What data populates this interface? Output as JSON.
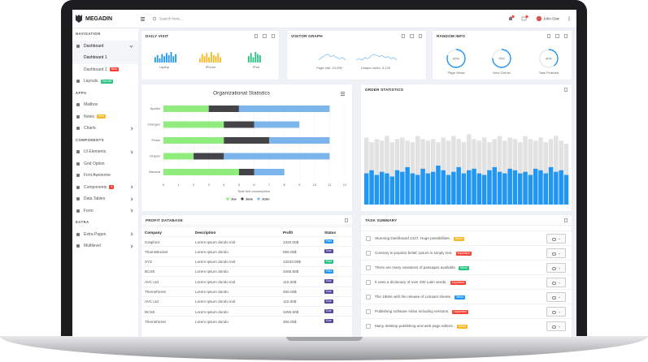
{
  "header": {
    "brand": "MEGADIN",
    "search_placeholder": "Search here...",
    "user": "John Doe"
  },
  "sidebar": {
    "sections": [
      {
        "title": "NAVIGATION",
        "items": [
          {
            "label": "Dashboard",
            "active": true,
            "has_submenu": true,
            "children": [
              {
                "label": "Dashboard 1",
                "active": true
              },
              {
                "label": "Dashboard 2",
                "badge": "New",
                "badge_color": "#f44336"
              }
            ]
          },
          {
            "label": "Layouts",
            "badge": "Special",
            "badge_color": "#26c281"
          }
        ]
      },
      {
        "title": "APPS",
        "items": [
          {
            "label": "Mailbox"
          },
          {
            "label": "Notes",
            "badge": "New",
            "badge_color": "#f7b924"
          },
          {
            "label": "Charts",
            "has_submenu": true
          }
        ]
      },
      {
        "title": "COMPONENTS",
        "items": [
          {
            "label": "UI Elements",
            "has_submenu": true
          },
          {
            "label": "Grid Option"
          },
          {
            "label": "Font Awesome"
          },
          {
            "label": "Components",
            "badge": "4",
            "badge_color": "#f44336",
            "has_submenu": true
          },
          {
            "label": "Data Tables",
            "has_submenu": true
          },
          {
            "label": "Form",
            "has_submenu": true
          }
        ]
      },
      {
        "title": "EXTRA",
        "items": [
          {
            "label": "Extra Pages",
            "has_submenu": true
          },
          {
            "label": "Multilevel",
            "has_submenu": true
          }
        ]
      }
    ]
  },
  "daily_visit": {
    "title": "DAILY VISIT",
    "ylim": [
      0,
      10
    ],
    "items": [
      {
        "label": "Laptop",
        "color": "#2196f3",
        "values": [
          5,
          7,
          4,
          8,
          6,
          9,
          7,
          10,
          6,
          8
        ]
      },
      {
        "label": "iPhone",
        "color": "#f7b924",
        "values": [
          4,
          8,
          6,
          9,
          5,
          10,
          7,
          6,
          9,
          5
        ]
      },
      {
        "label": "iPad",
        "color": "#26c281",
        "values": [
          6,
          9,
          5,
          10,
          8,
          7
        ]
      }
    ]
  },
  "visitor_graph": {
    "title": "VISITOR GRAPH",
    "ylim": [
      0,
      10
    ],
    "color": "#7cc4ec",
    "items": [
      {
        "label": "Page visit",
        "count": "10,090",
        "values": [
          3,
          5,
          7,
          8,
          6,
          7,
          5,
          4,
          5,
          3
        ]
      },
      {
        "label": "Unique visitor",
        "count": "8,129",
        "values": [
          3,
          4,
          3,
          5,
          4,
          6,
          8,
          7,
          6,
          7,
          5,
          6,
          4,
          5,
          3
        ]
      }
    ]
  },
  "random_info": {
    "title": "RANDOM INFO",
    "color": "#2196f3",
    "items": [
      {
        "value": 80,
        "label": "80%",
        "name": "Page Views"
      },
      {
        "value": 75,
        "label": "75%",
        "name": "New Clients"
      },
      {
        "value": 40,
        "label": "40%",
        "name": "Task Finished"
      }
    ]
  },
  "org_chart": {
    "type": "bar",
    "orientation": "horizontal",
    "stacked": true,
    "title": "Organizational Statistics",
    "x_label": "Total fruit consumption",
    "categories": [
      "Apples",
      "Oranges",
      "Pears",
      "Grapes",
      "Banana"
    ],
    "series": [
      {
        "name": "Joe",
        "color": "#90ed7d",
        "values": [
          3,
          4,
          4,
          2,
          5
        ]
      },
      {
        "name": "Jane",
        "color": "#434348",
        "values": [
          2,
          2,
          3,
          2,
          1
        ]
      },
      {
        "name": "John",
        "color": "#7cb5ec",
        "values": [
          6,
          3,
          4,
          7,
          2
        ]
      }
    ],
    "xlim": [
      0,
      12
    ],
    "xticks": [
      0,
      1,
      2,
      3,
      4,
      5,
      6,
      7,
      8,
      9,
      10,
      11,
      12
    ],
    "grid": true
  },
  "order_statistics": {
    "title": "ORDER STATISTICS",
    "chart": {
      "type": "bar",
      "overlap": true,
      "ylim": [
        0,
        100
      ],
      "series": [
        {
          "color": "#e2e2e2",
          "values": [
            86,
            80,
            84,
            82,
            88,
            80,
            84,
            86,
            82,
            80,
            88,
            84,
            82,
            84,
            80,
            86,
            82,
            88,
            84,
            80,
            90,
            84,
            82,
            86,
            80,
            84,
            88,
            82,
            86,
            84,
            80,
            88,
            84,
            82,
            86,
            80,
            84,
            88,
            82,
            78
          ]
        },
        {
          "color": "#2196f3",
          "values": [
            40,
            44,
            38,
            42,
            40,
            36,
            44,
            42,
            48,
            40,
            38,
            46,
            40,
            42,
            50,
            44,
            38,
            42,
            48,
            40,
            44,
            46,
            40,
            38,
            44,
            48,
            42,
            40,
            46,
            44,
            40,
            42,
            38,
            46,
            44,
            40,
            48,
            42,
            44,
            38
          ]
        }
      ]
    }
  },
  "profit_database": {
    "title": "PROFIT DATABASE",
    "columns": [
      "Company",
      "Description",
      "Profit",
      "Status"
    ],
    "rows": [
      {
        "company": "Graphics",
        "description": "Lorem Ipsum dorolo imit",
        "profit": "1320.00$",
        "status": "Paid",
        "status_color": "#2196f3"
      },
      {
        "company": "ThameBucket",
        "description": "Lorem Ipsum dorolo",
        "profit": "556.00$",
        "status": "Due",
        "status_color": "#5b4a9c"
      },
      {
        "company": "XYZ",
        "description": "Lorem Ipsum dorolo imit",
        "profit": "13240.00$",
        "status": "Paid",
        "status_color": "#26c281"
      },
      {
        "company": "BCSE",
        "description": "Lorem Ipsum dorolo",
        "profit": "3455.50$",
        "status": "Paid",
        "status_color": "#2196f3"
      },
      {
        "company": "AVC Ltd",
        "description": "Lorem Ipsum dorolo imit",
        "profit": "110.00$",
        "status": "Due",
        "status_color": "#5b4a9c"
      },
      {
        "company": "Themeforest",
        "description": "Lorem Ipsum dorolo",
        "profit": "456.00$",
        "status": "Due",
        "status_color": "#5b4a9c"
      },
      {
        "company": "AVC Ltd",
        "description": "Lorem Ipsum dorolo imit",
        "profit": "110.00$",
        "status": "Due",
        "status_color": "#5b4a9c"
      },
      {
        "company": "BCSE",
        "description": "Lorem Ipsum dorolo",
        "profit": "3455.50$",
        "status": "Due",
        "status_color": "#5b4a9c"
      },
      {
        "company": "Themeforest",
        "description": "Lorem Ipsum dorolo",
        "profit": "456.00$",
        "status": "Due",
        "status_color": "#5b4a9c"
      }
    ]
  },
  "task_summary": {
    "title": "TASK SUMMARY",
    "tasks": [
      {
        "text": "Stunning Dashboard 2107. Huge possibilities.",
        "badge": "Minor",
        "badge_color": "#f7b924"
      },
      {
        "text": "Contrary to popular belief, Ipsum is simply text.",
        "badge": "Important",
        "badge_color": "#f44336"
      },
      {
        "text": "There are many variations of passages available",
        "badge": "Minor",
        "badge_color": "#26c281"
      },
      {
        "text": "It uses a dictionary of over 200 Latin words.",
        "badge": "Important",
        "badge_color": "#f44336"
      },
      {
        "text": "The 1960s with the release of Letraset sheets.",
        "badge": "Minor",
        "badge_color": "#2196f3"
      },
      {
        "text": "Publishing software Aldus including versions.",
        "badge": "Important",
        "badge_color": "#f44336"
      },
      {
        "text": "Many desktop publishing and web page editors.",
        "badge": "Minor",
        "badge_color": "#f7b924"
      }
    ]
  }
}
